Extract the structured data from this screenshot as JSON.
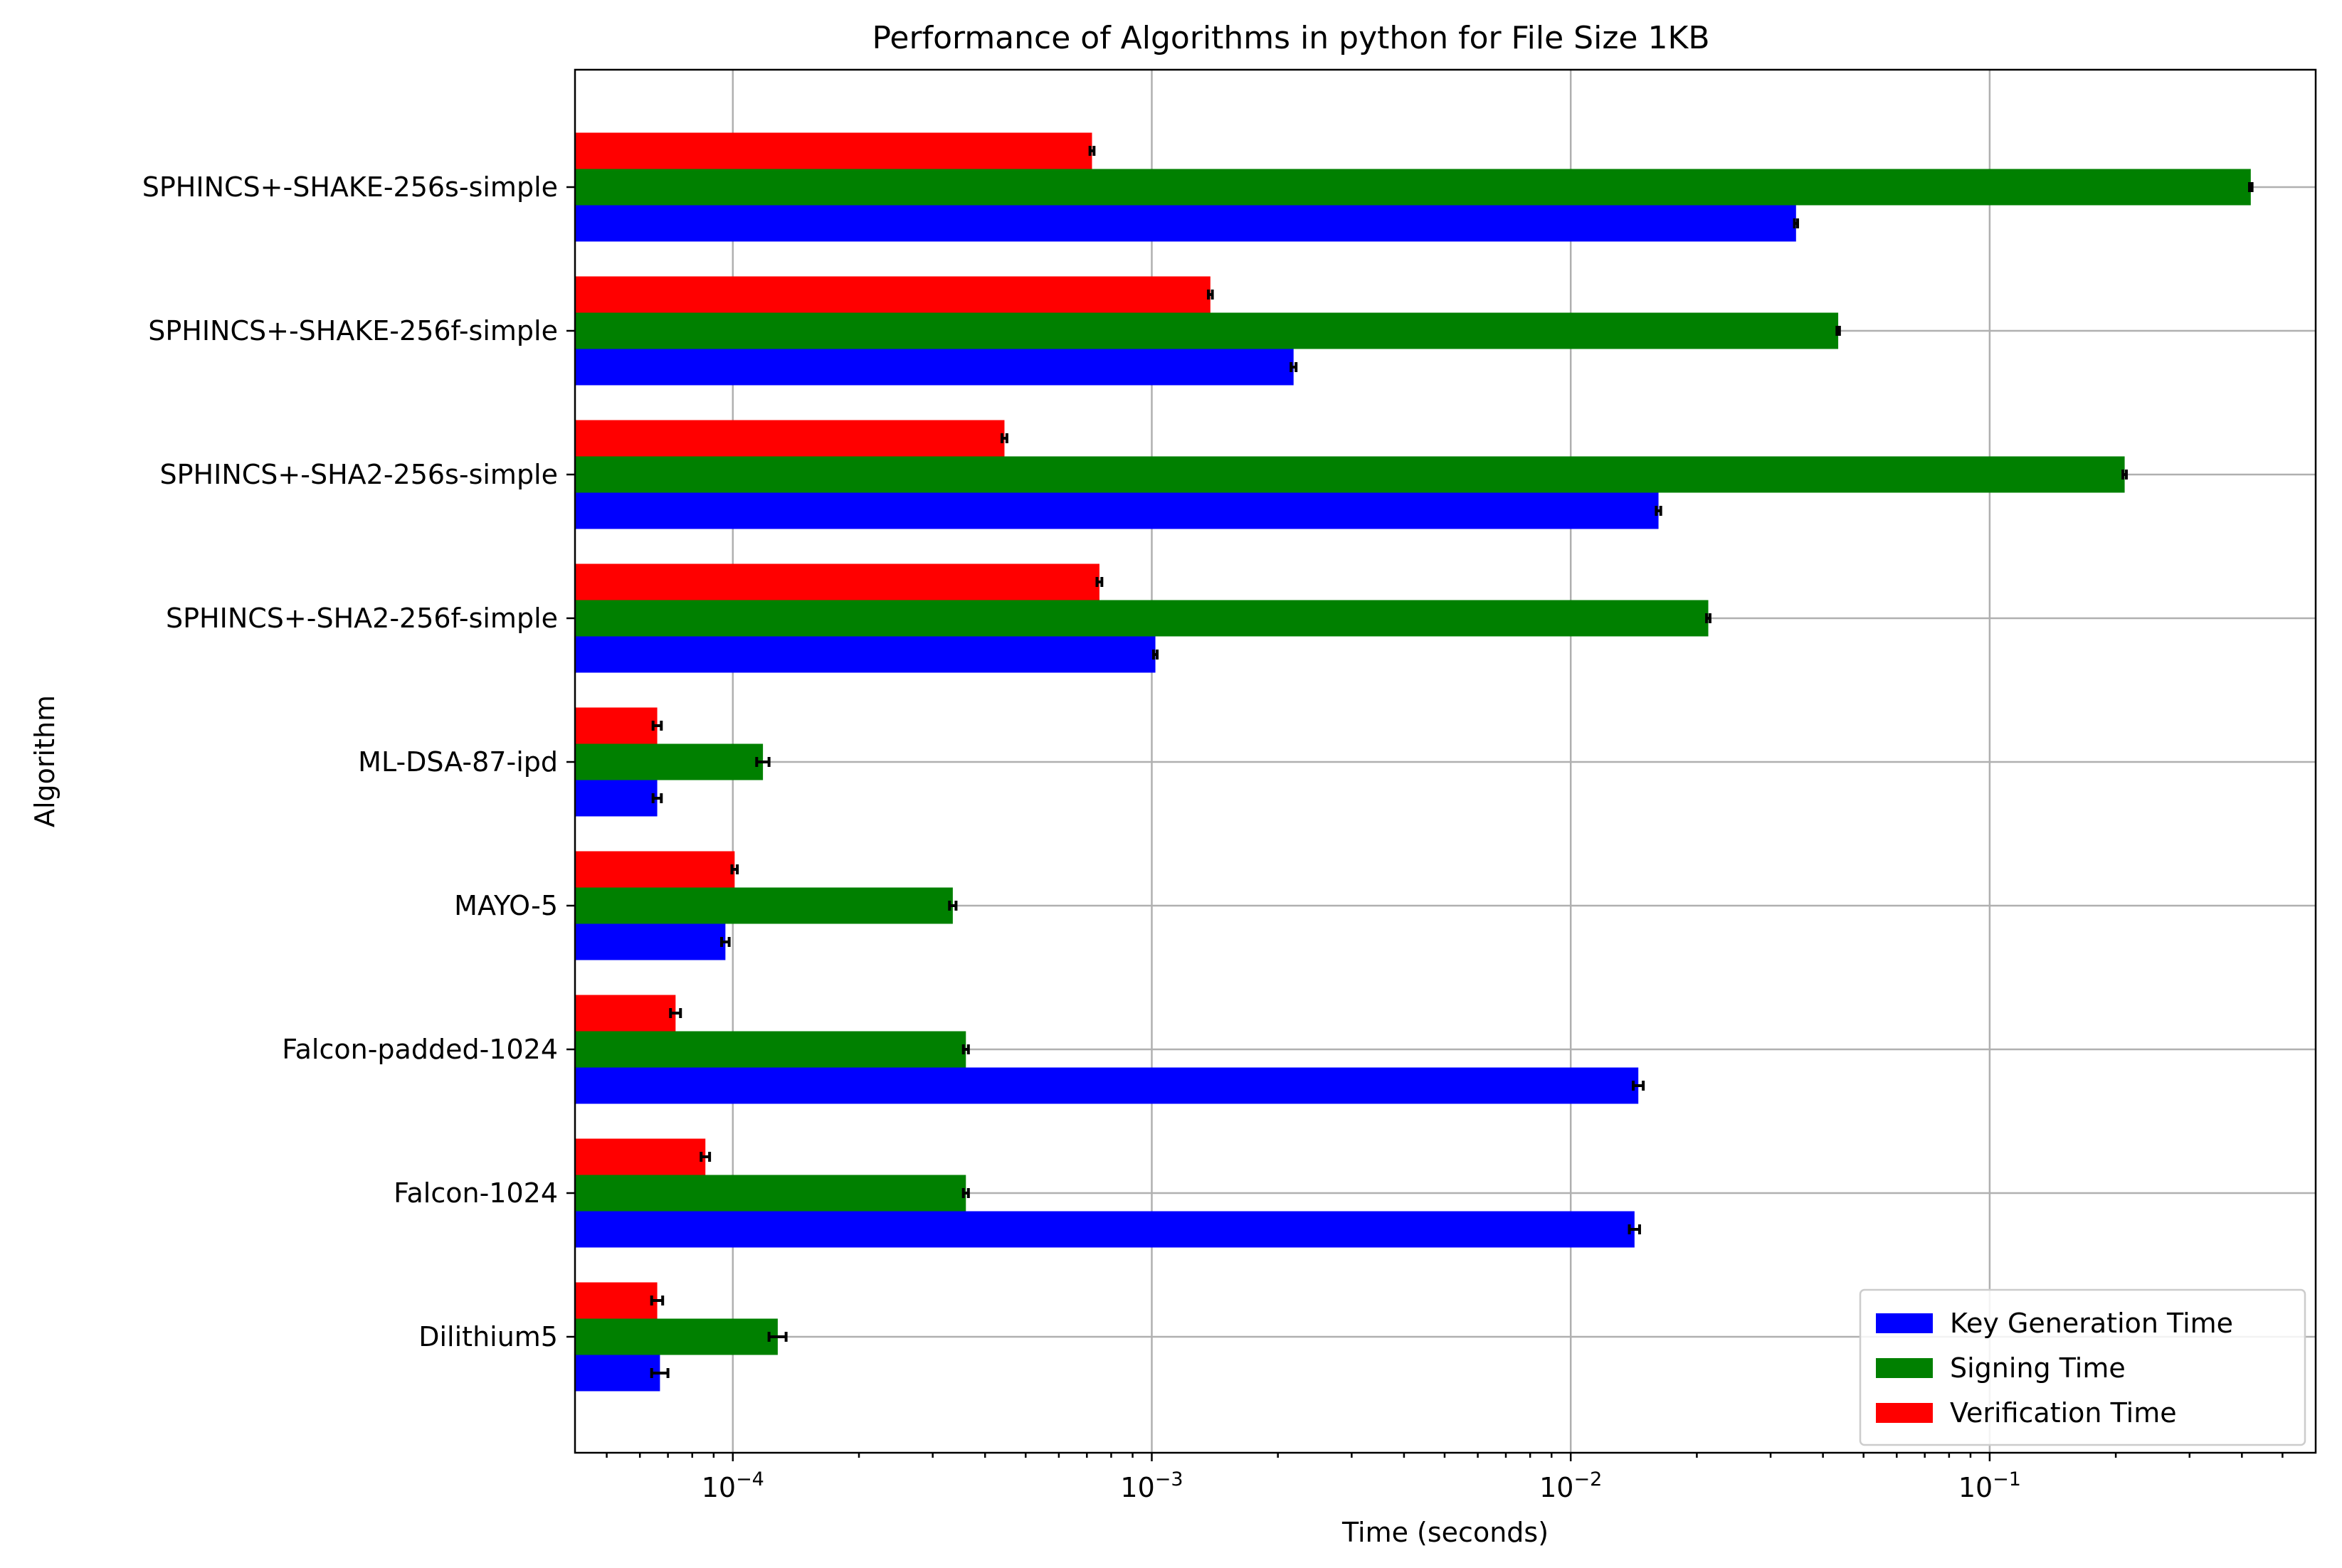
{
  "chart_data": {
    "type": "bar",
    "orientation": "horizontal",
    "title": "Performance of Algorithms in python for File Size 1KB",
    "xlabel": "Time (seconds)",
    "ylabel": "Algorithm",
    "xscale": "log",
    "xlim": [
      4.2e-05,
      0.6
    ],
    "grid": true,
    "legend_position": "lower-right",
    "x_ticks": [
      {
        "value": 0.0001,
        "base": "10",
        "exp": "−4"
      },
      {
        "value": 0.001,
        "base": "10",
        "exp": "−3"
      },
      {
        "value": 0.01,
        "base": "10",
        "exp": "−2"
      },
      {
        "value": 0.1,
        "base": "10",
        "exp": "−1"
      }
    ],
    "categories": [
      "Dilithium5",
      "Falcon-1024",
      "Falcon-padded-1024",
      "MAYO-5",
      "ML-DSA-87-ipd",
      "SPHINCS+-SHA2-256f-simple",
      "SPHINCS+-SHA2-256s-simple",
      "SPHINCS+-SHAKE-256f-simple",
      "SPHINCS+-SHAKE-256s-simple"
    ],
    "series": [
      {
        "name": "Key Generation Time",
        "color": "#0000ff",
        "values": [
          6.7e-05,
          0.0142,
          0.0145,
          9.6e-05,
          6.6e-05,
          0.00102,
          0.0162,
          0.00218,
          0.0345
        ],
        "errors": [
          3e-06,
          0.0004,
          0.0004,
          2e-06,
          1.5e-06,
          1e-05,
          0.0002,
          3e-05,
          0.0003
        ]
      },
      {
        "name": "Signing Time",
        "color": "#008000",
        "values": [
          0.000128,
          0.00036,
          0.00036,
          0.000335,
          0.000118,
          0.0213,
          0.21,
          0.0435,
          0.42
        ],
        "errors": [
          6e-06,
          5e-06,
          5e-06,
          6e-06,
          4e-06,
          0.0002,
          0.002,
          0.0003,
          0.003
        ]
      },
      {
        "name": "Verification Time",
        "color": "#ff0000",
        "values": [
          6.6e-05,
          8.6e-05,
          7.3e-05,
          0.000101,
          6.6e-05,
          0.00075,
          0.000445,
          0.00138,
          0.00072
        ],
        "errors": [
          2e-06,
          2e-06,
          2e-06,
          1.5e-06,
          1.5e-06,
          1e-05,
          6e-06,
          1.5e-05,
          8e-06
        ]
      }
    ]
  }
}
